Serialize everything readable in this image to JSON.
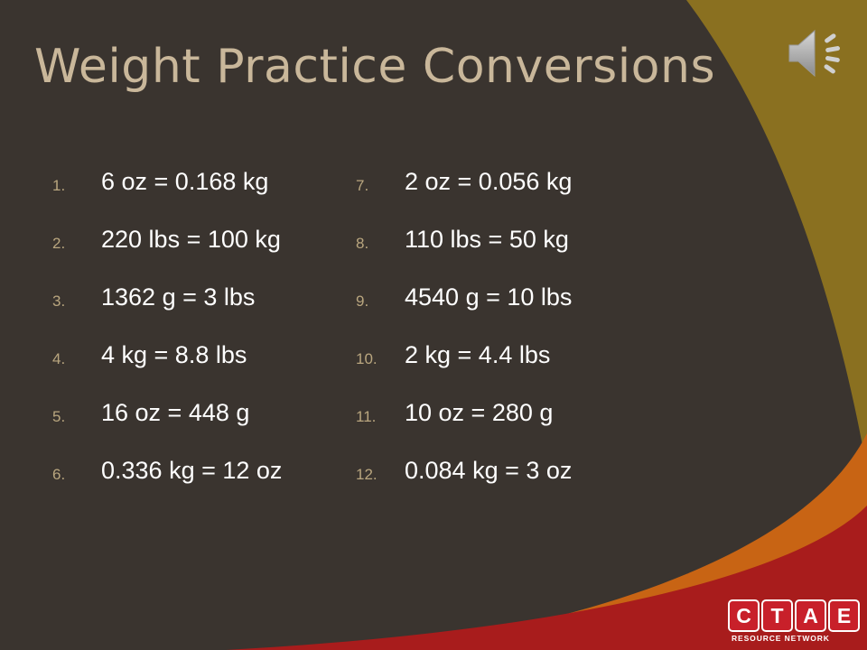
{
  "slide": {
    "title": "Weight Practice Conversions",
    "colors": {
      "background": "#3a342f",
      "accent_gold": "#8a7020",
      "accent_orange": "#c86414",
      "accent_red": "#a81c1c",
      "title": "#c9b79a",
      "number": "#b9a67f"
    },
    "left_items": [
      {
        "num": "1.",
        "text": "6 oz = 0.168 kg"
      },
      {
        "num": "2.",
        "text": "220 lbs = 100 kg"
      },
      {
        "num": "3.",
        "text": "1362 g = 3 lbs"
      },
      {
        "num": "4.",
        "text": "4 kg = 8.8 lbs"
      },
      {
        "num": "5.",
        "text": "16 oz = 448 g"
      },
      {
        "num": "6.",
        "text": "0.336 kg = 12 oz"
      }
    ],
    "right_items": [
      {
        "num": "7.",
        "text": "2 oz = 0.056 kg"
      },
      {
        "num": "8.",
        "text": "110 lbs = 50 kg"
      },
      {
        "num": "9.",
        "text": "4540 g = 10 lbs"
      },
      {
        "num": "10.",
        "text": "2 kg = 4.4 lbs"
      },
      {
        "num": "11.",
        "text": "10 oz = 280 g"
      },
      {
        "num": "12.",
        "text": "0.084 kg = 3 oz"
      }
    ]
  },
  "audio": {
    "icon": "speaker-icon"
  },
  "logo": {
    "letters": [
      "C",
      "T",
      "A",
      "E"
    ],
    "subtitle": "RESOURCE NETWORK"
  }
}
